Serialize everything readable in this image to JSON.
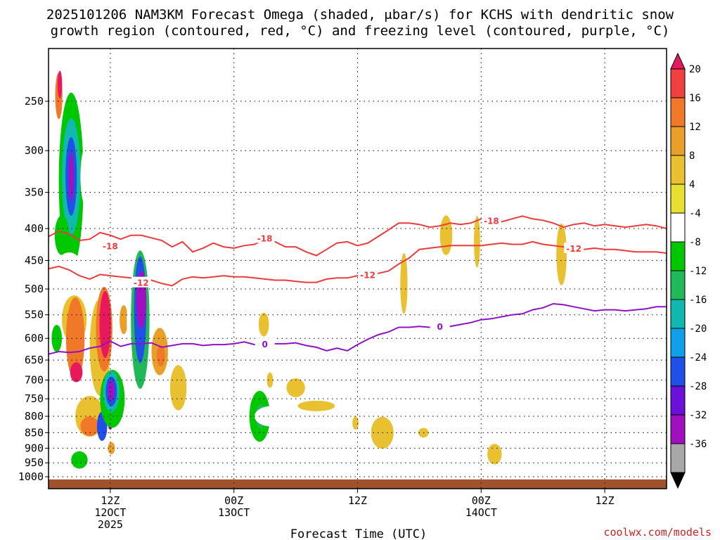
{
  "title_line1": "2025101206 NAM3KM Forecast Omega (shaded, μbar/s) for KCHS with dendritic snow",
  "title_line2": "growth region (contoured, red, °C) and freezing level (contoured, purple, °C)",
  "xlabel": "Forecast Time (UTC)",
  "credit": "coolwx.com/models",
  "chart_data": {
    "type": "heatmap",
    "title": "2025101206 NAM3KM Forecast Omega (shaded, μbar/s) for KCHS with dendritic snow growth region (contoured, red, °C) and freezing level (contoured, purple, °C)",
    "xlabel": "Forecast Time (UTC)",
    "ylabel": "",
    "x_range_hours": [
      6,
      66
    ],
    "x_unit": "forecast hour from 2025-10-12 06Z",
    "y_scale": "log-pressure (hPa), inverted",
    "y_range_hPa": [
      1000,
      200
    ],
    "grid": true,
    "x_ticks": [
      {
        "hour": 12,
        "lines": [
          "12Z",
          "12OCT",
          "2025"
        ]
      },
      {
        "hour": 24,
        "lines": [
          "00Z",
          "13OCT"
        ]
      },
      {
        "hour": 36,
        "lines": [
          "12Z"
        ]
      },
      {
        "hour": 48,
        "lines": [
          "00Z",
          "14OCT"
        ]
      },
      {
        "hour": 60,
        "lines": [
          "12Z"
        ]
      }
    ],
    "y_ticks": [
      250,
      300,
      350,
      400,
      450,
      500,
      550,
      600,
      650,
      700,
      750,
      800,
      850,
      900,
      950,
      1000
    ],
    "colorbar": {
      "ticks": [
        20,
        16,
        12,
        8,
        4,
        -4,
        -8,
        -12,
        -16,
        -20,
        -24,
        -28,
        -32,
        -36
      ],
      "colors": [
        "#e8185c",
        "#f04040",
        "#f07828",
        "#e8a028",
        "#e8c030",
        "#e8e030",
        "#ffffff",
        "#00c800",
        "#20b858",
        "#10b8b0",
        "#10a0e8",
        "#2050e8",
        "#6a10d8",
        "#a010c0",
        "#a8a8a8",
        "#000000"
      ]
    },
    "contours": [
      {
        "name": "-18",
        "color": "#ee3a3a",
        "points": [
          [
            6,
            412
          ],
          [
            7,
            404
          ],
          [
            8,
            408
          ],
          [
            9,
            418
          ],
          [
            10,
            416
          ],
          [
            11,
            406
          ],
          [
            12,
            410
          ],
          [
            13,
            416
          ],
          [
            14,
            410
          ],
          [
            15,
            410
          ],
          [
            16,
            414
          ],
          [
            17,
            418
          ],
          [
            18,
            428
          ],
          [
            19,
            420
          ],
          [
            20,
            436
          ],
          [
            21,
            430
          ],
          [
            22,
            422
          ],
          [
            23,
            428
          ],
          [
            24,
            430
          ],
          [
            25,
            426
          ],
          [
            26,
            424
          ],
          [
            27,
            416
          ],
          [
            28,
            420
          ],
          [
            29,
            428
          ],
          [
            30,
            428
          ],
          [
            31,
            436
          ],
          [
            32,
            442
          ],
          [
            33,
            432
          ],
          [
            34,
            422
          ],
          [
            35,
            420
          ],
          [
            36,
            426
          ],
          [
            37,
            422
          ],
          [
            38,
            412
          ],
          [
            39,
            402
          ],
          [
            40,
            392
          ],
          [
            41,
            392
          ],
          [
            42,
            394
          ],
          [
            43,
            398
          ],
          [
            44,
            396
          ],
          [
            45,
            392
          ],
          [
            46,
            394
          ],
          [
            47,
            392
          ],
          [
            48,
            386
          ],
          [
            49,
            388
          ],
          [
            50,
            390
          ],
          [
            51,
            386
          ],
          [
            52,
            382
          ],
          [
            53,
            386
          ],
          [
            54,
            388
          ],
          [
            55,
            392
          ],
          [
            56,
            398
          ],
          [
            57,
            394
          ],
          [
            58,
            392
          ],
          [
            59,
            396
          ],
          [
            60,
            394
          ],
          [
            61,
            396
          ],
          [
            62,
            398
          ],
          [
            63,
            396
          ],
          [
            64,
            394
          ],
          [
            65,
            396
          ],
          [
            66,
            400
          ]
        ],
        "labels": [
          [
            12,
            426
          ],
          [
            27,
            414
          ],
          [
            49,
            388
          ]
        ]
      },
      {
        "name": "-12",
        "color": "#ee3a3a",
        "points": [
          [
            6,
            464
          ],
          [
            7,
            460
          ],
          [
            8,
            466
          ],
          [
            9,
            476
          ],
          [
            10,
            482
          ],
          [
            11,
            474
          ],
          [
            12,
            476
          ],
          [
            13,
            478
          ],
          [
            14,
            480
          ],
          [
            15,
            482
          ],
          [
            16,
            484
          ],
          [
            17,
            490
          ],
          [
            18,
            494
          ],
          [
            19,
            482
          ],
          [
            20,
            478
          ],
          [
            21,
            480
          ],
          [
            22,
            478
          ],
          [
            23,
            476
          ],
          [
            24,
            478
          ],
          [
            25,
            478
          ],
          [
            26,
            480
          ],
          [
            27,
            482
          ],
          [
            28,
            484
          ],
          [
            29,
            484
          ],
          [
            30,
            486
          ],
          [
            31,
            488
          ],
          [
            32,
            488
          ],
          [
            33,
            482
          ],
          [
            34,
            480
          ],
          [
            35,
            480
          ],
          [
            36,
            476
          ],
          [
            37,
            474
          ],
          [
            38,
            472
          ],
          [
            39,
            468
          ],
          [
            40,
            456
          ],
          [
            41,
            446
          ],
          [
            42,
            432
          ],
          [
            43,
            430
          ],
          [
            44,
            428
          ],
          [
            45,
            426
          ],
          [
            46,
            426
          ],
          [
            47,
            426
          ],
          [
            48,
            426
          ],
          [
            49,
            424
          ],
          [
            50,
            422
          ],
          [
            51,
            424
          ],
          [
            52,
            424
          ],
          [
            53,
            420
          ],
          [
            54,
            424
          ],
          [
            55,
            426
          ],
          [
            56,
            428
          ],
          [
            57,
            430
          ],
          [
            58,
            432
          ],
          [
            59,
            430
          ],
          [
            60,
            432
          ],
          [
            61,
            432
          ],
          [
            62,
            434
          ],
          [
            63,
            436
          ],
          [
            64,
            436
          ],
          [
            65,
            436
          ],
          [
            66,
            438
          ]
        ],
        "labels": [
          [
            15,
            488
          ],
          [
            37,
            474
          ],
          [
            57,
            430
          ]
        ]
      },
      {
        "name": "0",
        "color": "#9010c8",
        "points": [
          [
            6,
            636
          ],
          [
            7,
            630
          ],
          [
            8,
            632
          ],
          [
            9,
            630
          ],
          [
            10,
            622
          ],
          [
            11,
            618
          ],
          [
            12,
            606
          ],
          [
            13,
            618
          ],
          [
            14,
            612
          ],
          [
            15,
            612
          ],
          [
            16,
            610
          ],
          [
            17,
            620
          ],
          [
            18,
            616
          ],
          [
            19,
            612
          ],
          [
            20,
            612
          ],
          [
            21,
            616
          ],
          [
            22,
            614
          ],
          [
            23,
            614
          ],
          [
            24,
            612
          ],
          [
            25,
            608
          ],
          [
            26,
            614
          ],
          [
            27,
            612
          ],
          [
            28,
            612
          ],
          [
            29,
            612
          ],
          [
            30,
            610
          ],
          [
            31,
            616
          ],
          [
            32,
            620
          ],
          [
            33,
            628
          ],
          [
            34,
            622
          ],
          [
            35,
            628
          ],
          [
            36,
            614
          ],
          [
            37,
            602
          ],
          [
            38,
            592
          ],
          [
            39,
            586
          ],
          [
            40,
            576
          ],
          [
            41,
            576
          ],
          [
            42,
            574
          ],
          [
            43,
            576
          ],
          [
            44,
            574
          ],
          [
            45,
            574
          ],
          [
            46,
            570
          ],
          [
            47,
            566
          ],
          [
            48,
            560
          ],
          [
            49,
            558
          ],
          [
            50,
            554
          ],
          [
            51,
            550
          ],
          [
            52,
            548
          ],
          [
            53,
            540
          ],
          [
            54,
            536
          ],
          [
            55,
            528
          ],
          [
            56,
            530
          ],
          [
            57,
            534
          ],
          [
            58,
            538
          ],
          [
            59,
            542
          ],
          [
            60,
            540
          ],
          [
            61,
            540
          ],
          [
            62,
            542
          ],
          [
            63,
            540
          ],
          [
            64,
            538
          ],
          [
            65,
            534
          ],
          [
            66,
            534
          ]
        ],
        "labels": [
          [
            27,
            612
          ],
          [
            44,
            574
          ]
        ]
      }
    ],
    "omega_blobs": [
      {
        "t": 7.0,
        "p": 245,
        "rx": 0.35,
        "ry": 42,
        "v": 14
      },
      {
        "t": 7.1,
        "p": 235,
        "rx": 0.22,
        "ry": 24,
        "v": 20
      },
      {
        "t": 8.2,
        "p": 335,
        "rx": 1.2,
        "ry": 210,
        "v": -10
      },
      {
        "t": 8.2,
        "p": 330,
        "rx": 0.9,
        "ry": 140,
        "v": -18
      },
      {
        "t": 8.2,
        "p": 330,
        "rx": 0.55,
        "ry": 95,
        "v": -26
      },
      {
        "t": 8.2,
        "p": 330,
        "rx": 0.25,
        "ry": 60,
        "v": -34
      },
      {
        "t": 9.6,
        "p": 330,
        "rx": 0.5,
        "ry": 70,
        "v": -8
      },
      {
        "t": 7.3,
        "p": 410,
        "rx": 0.7,
        "ry": 60,
        "v": -12
      },
      {
        "t": 8.0,
        "p": 480,
        "rx": 1.6,
        "ry": 90,
        "v": -8
      },
      {
        "t": 6.8,
        "p": 600,
        "rx": 0.5,
        "ry": 60,
        "v": -10
      },
      {
        "t": 8.5,
        "p": 560,
        "rx": 1.2,
        "ry": 100,
        "v": 4
      },
      {
        "t": 8.6,
        "p": 600,
        "rx": 0.9,
        "ry": 180,
        "v": 12
      },
      {
        "t": 8.7,
        "p": 680,
        "rx": 0.6,
        "ry": 50,
        "v": 20
      },
      {
        "t": 10.0,
        "p": 800,
        "rx": 1.4,
        "ry": 120,
        "v": 6
      },
      {
        "t": 10.0,
        "p": 830,
        "rx": 0.9,
        "ry": 60,
        "v": 14
      },
      {
        "t": 11.0,
        "p": 620,
        "rx": 1.0,
        "ry": 220,
        "v": 6
      },
      {
        "t": 11.4,
        "p": 580,
        "rx": 0.8,
        "ry": 180,
        "v": 14
      },
      {
        "t": 11.5,
        "p": 570,
        "rx": 0.55,
        "ry": 140,
        "v": 20
      },
      {
        "t": 11.5,
        "p": 340,
        "rx": 0.4,
        "ry": 40,
        "v": -8
      },
      {
        "t": 11.2,
        "p": 830,
        "rx": 0.5,
        "ry": 90,
        "v": -28
      },
      {
        "t": 12.0,
        "p": 810,
        "rx": 0.3,
        "ry": 60,
        "v": -36
      },
      {
        "t": 9.0,
        "p": 940,
        "rx": 0.8,
        "ry": 60,
        "v": -10
      },
      {
        "t": 12.2,
        "p": 750,
        "rx": 1.2,
        "ry": 160,
        "v": -10
      },
      {
        "t": 12.1,
        "p": 730,
        "rx": 0.8,
        "ry": 110,
        "v": -18
      },
      {
        "t": 12.1,
        "p": 730,
        "rx": 0.55,
        "ry": 80,
        "v": -28
      },
      {
        "t": 12.1,
        "p": 728,
        "rx": 0.3,
        "ry": 55,
        "v": -36
      },
      {
        "t": 12.1,
        "p": 900,
        "rx": 0.35,
        "ry": 40,
        "v": 10
      },
      {
        "t": 13.3,
        "p": 560,
        "rx": 0.4,
        "ry": 60,
        "v": 10
      },
      {
        "t": 13.3,
        "p": 330,
        "rx": 0.6,
        "ry": 95,
        "v": -8
      },
      {
        "t": 14.8,
        "p": 560,
        "rx": 1.2,
        "ry": 350,
        "v": -8
      },
      {
        "t": 14.9,
        "p": 560,
        "rx": 0.9,
        "ry": 280,
        "v": -16
      },
      {
        "t": 14.9,
        "p": 540,
        "rx": 0.6,
        "ry": 210,
        "v": -26
      },
      {
        "t": 15.0,
        "p": 520,
        "rx": 0.5,
        "ry": 110,
        "v": -36
      },
      {
        "t": 16.0,
        "p": 440,
        "rx": 0.4,
        "ry": 60,
        "v": -8
      },
      {
        "t": 16.8,
        "p": 630,
        "rx": 0.8,
        "ry": 110,
        "v": 8
      },
      {
        "t": 16.9,
        "p": 640,
        "rx": 0.4,
        "ry": 50,
        "v": 14
      },
      {
        "t": 18.6,
        "p": 720,
        "rx": 0.8,
        "ry": 120,
        "v": 4
      },
      {
        "t": 19.6,
        "p": 480,
        "rx": 0.3,
        "ry": 70,
        "v": -8
      },
      {
        "t": 20.0,
        "p": 800,
        "rx": 0.2,
        "ry": 30,
        "v": -8
      },
      {
        "t": 23.5,
        "p": 800,
        "rx": 2.3,
        "ry": 90,
        "v": -8
      },
      {
        "t": 24.7,
        "p": 780,
        "rx": 1.0,
        "ry": 120,
        "v": -8
      },
      {
        "t": 26.5,
        "p": 800,
        "rx": 1.0,
        "ry": 150,
        "v": -10
      },
      {
        "t": 26.6,
        "p": 800,
        "rx": 0.5,
        "ry": 70,
        "v": -16
      },
      {
        "t": 27.6,
        "p": 800,
        "rx": 1.6,
        "ry": 60,
        "v": -8
      },
      {
        "t": 25.4,
        "p": 440,
        "rx": 0.4,
        "ry": 80,
        "v": -8
      },
      {
        "t": 26.9,
        "p": 570,
        "rx": 0.5,
        "ry": 50,
        "v": 4
      },
      {
        "t": 27.5,
        "p": 700,
        "rx": 0.3,
        "ry": 40,
        "v": 4
      },
      {
        "t": 30.0,
        "p": 720,
        "rx": 0.9,
        "ry": 50,
        "v": 4
      },
      {
        "t": 32.0,
        "p": 620,
        "rx": 1.3,
        "ry": 60,
        "v": -8
      },
      {
        "t": 32.0,
        "p": 770,
        "rx": 1.8,
        "ry": 30,
        "v": 4
      },
      {
        "t": 35.8,
        "p": 820,
        "rx": 0.3,
        "ry": 40,
        "v": 4
      },
      {
        "t": 38.4,
        "p": 850,
        "rx": 1.1,
        "ry": 100,
        "v": 4
      },
      {
        "t": 40.5,
        "p": 490,
        "rx": 0.35,
        "ry": 110,
        "v": 4
      },
      {
        "t": 42.4,
        "p": 850,
        "rx": 0.5,
        "ry": 30,
        "v": 4
      },
      {
        "t": 44.6,
        "p": 410,
        "rx": 0.6,
        "ry": 60,
        "v": 4
      },
      {
        "t": 47.6,
        "p": 420,
        "rx": 0.3,
        "ry": 80,
        "v": 4
      },
      {
        "t": 49.3,
        "p": 920,
        "rx": 0.7,
        "ry": 70,
        "v": 4
      },
      {
        "t": 51.0,
        "p": 920,
        "rx": 0.1,
        "ry": 12,
        "v": -8
      },
      {
        "t": 55.8,
        "p": 440,
        "rx": 0.5,
        "ry": 100,
        "v": 4
      }
    ],
    "ground": {
      "top_hPa": 1010
    }
  }
}
